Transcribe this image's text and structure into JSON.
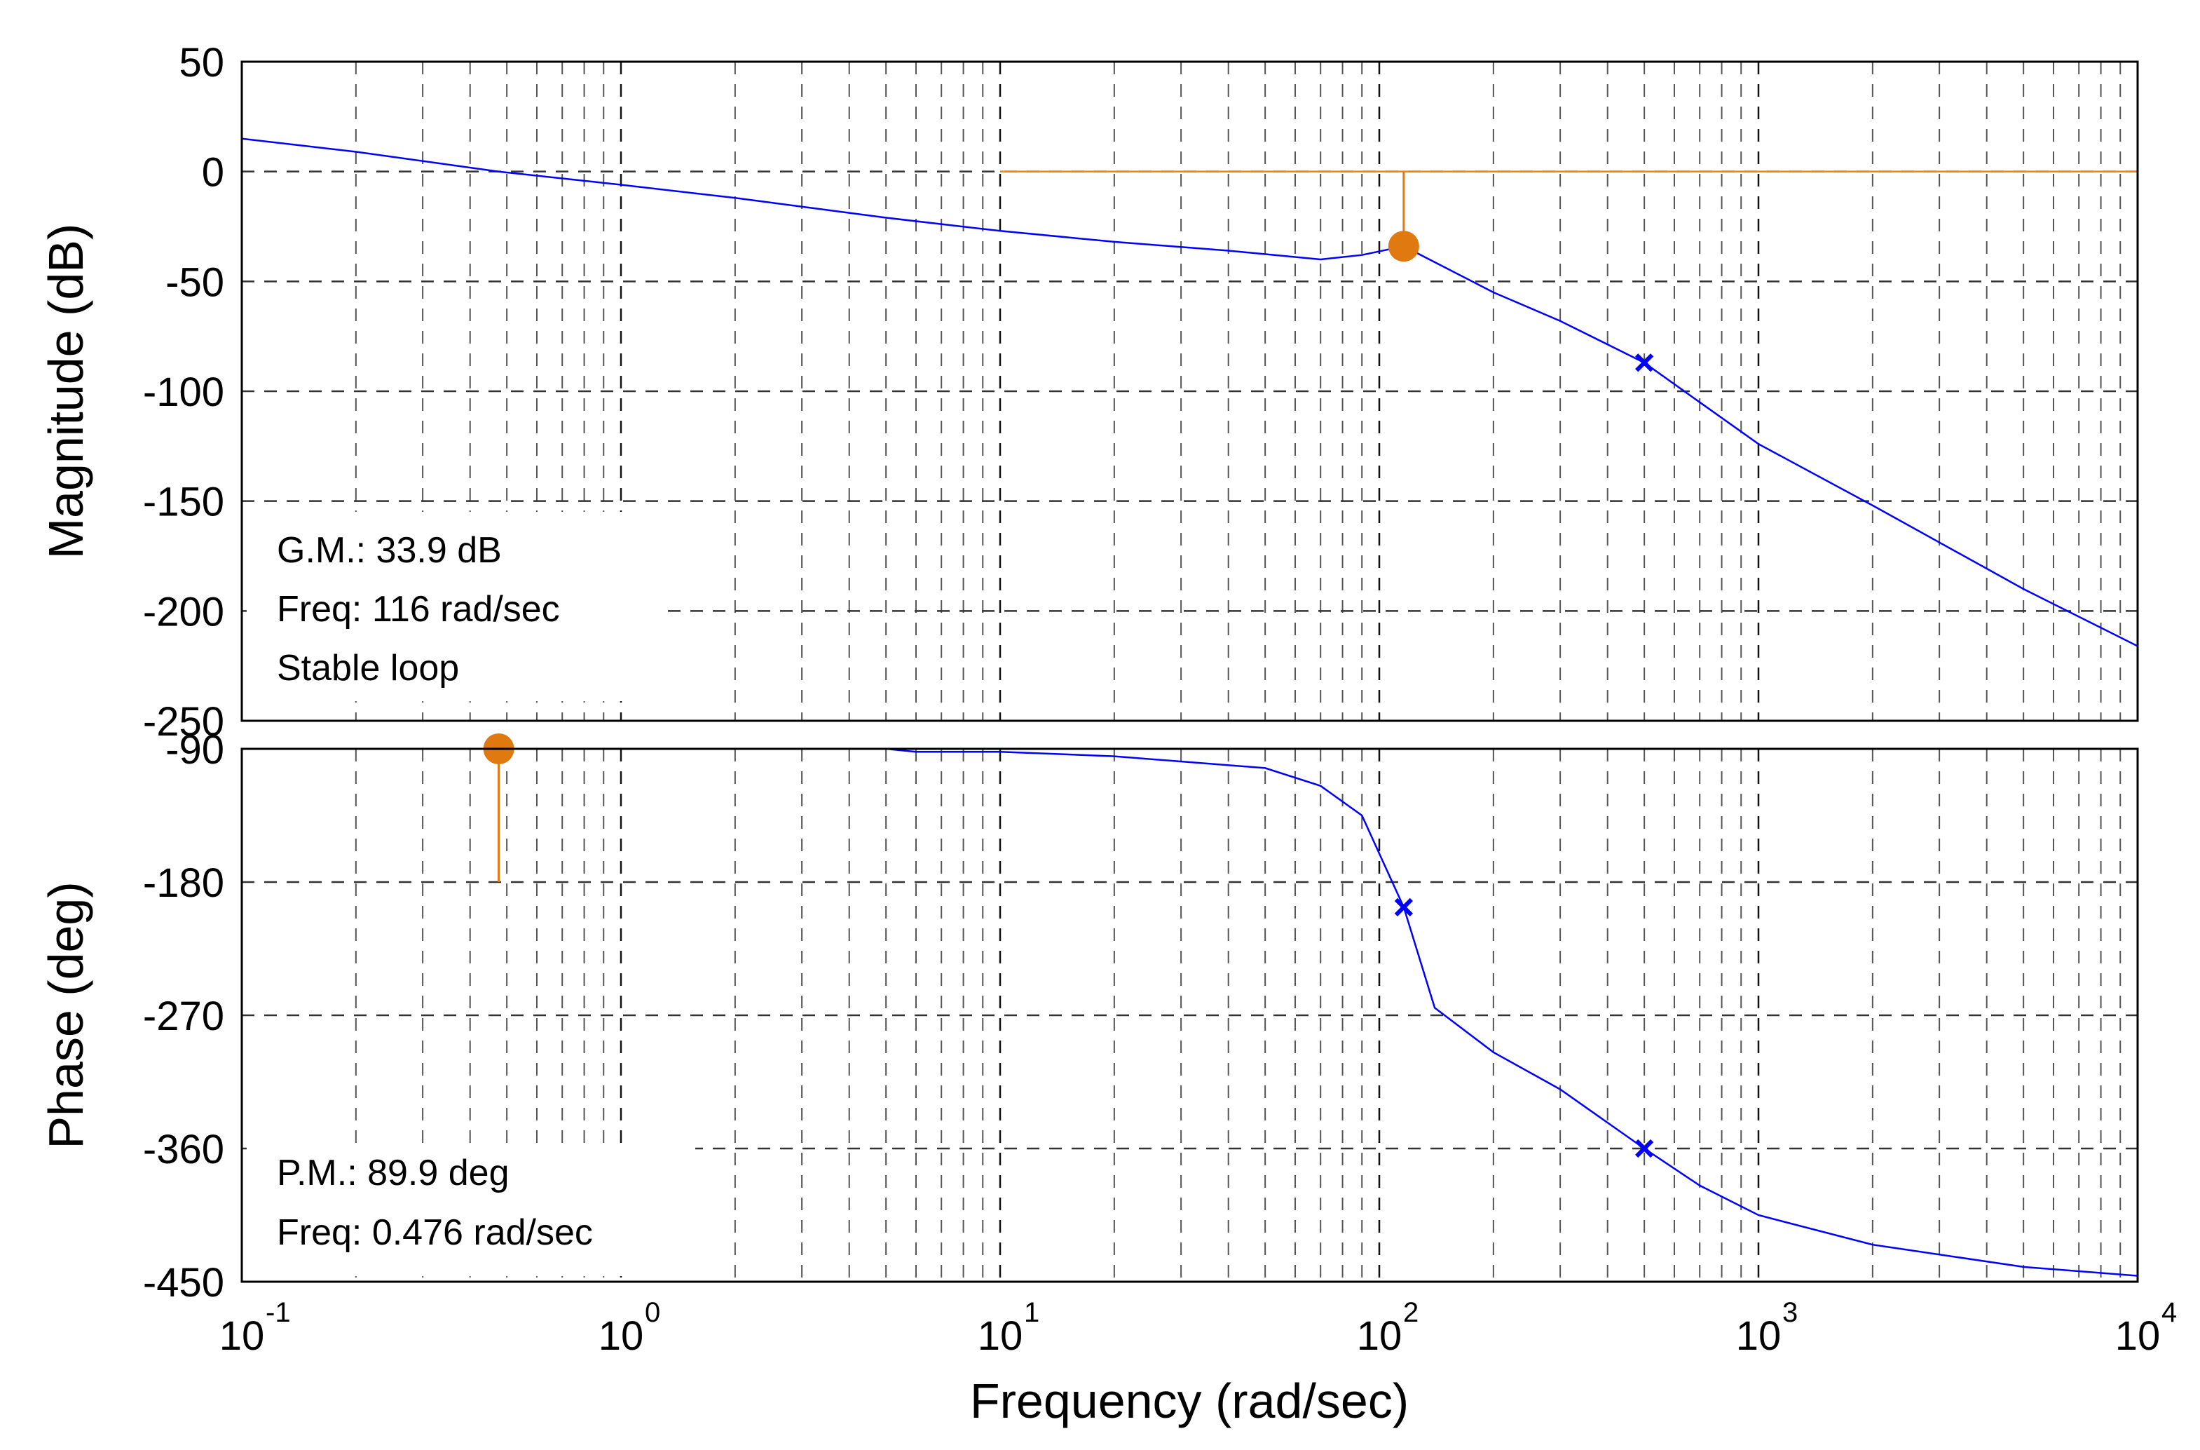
{
  "chart_data": [
    {
      "type": "line",
      "name": "magnitude",
      "ylabel": "Magnitude (dB)",
      "xscale": "log",
      "xlim": [
        0.1,
        10000
      ],
      "ylim": [
        -250,
        50
      ],
      "yticks": [
        50,
        0,
        -50,
        -100,
        -150,
        -200,
        -250
      ],
      "grid": true,
      "series": [
        {
          "name": "magnitude response",
          "color": "#0000ff",
          "points": [
            [
              0.1,
              15
            ],
            [
              0.2,
              9
            ],
            [
              0.476,
              0
            ],
            [
              1,
              -6
            ],
            [
              2,
              -12
            ],
            [
              3,
              -16
            ],
            [
              5,
              -21
            ],
            [
              10,
              -27
            ],
            [
              20,
              -32
            ],
            [
              40,
              -36
            ],
            [
              70,
              -40
            ],
            [
              90,
              -38
            ],
            [
              116,
              -34
            ],
            [
              200,
              -55
            ],
            [
              300,
              -68
            ],
            [
              500,
              -87
            ],
            [
              700,
              -105
            ],
            [
              1000,
              -124
            ],
            [
              2000,
              -152
            ],
            [
              5000,
              -190
            ],
            [
              10000,
              -216
            ]
          ]
        }
      ],
      "reference_line": {
        "y": 0,
        "color": "#ff8000"
      },
      "markers": [
        {
          "shape": "circle",
          "x": 116,
          "y": -34,
          "color": "#e07a10",
          "stem_to": 0
        },
        {
          "shape": "x",
          "x": 500,
          "y": -87,
          "color": "#0000ff"
        }
      ],
      "annotations": [
        "G.M.: 33.9 dB",
        "Freq: 116 rad/sec",
        "Stable loop"
      ]
    },
    {
      "type": "line",
      "name": "phase",
      "ylabel": "Phase (deg)",
      "xlabel": "Frequency (rad/sec)",
      "xscale": "log",
      "xlim": [
        0.1,
        10000
      ],
      "ylim": [
        -450,
        -90
      ],
      "yticks": [
        -90,
        -180,
        -270,
        -360,
        -450
      ],
      "xtick_labels": [
        {
          "base": "10",
          "exp": "-1"
        },
        {
          "base": "10",
          "exp": "0"
        },
        {
          "base": "10",
          "exp": "1"
        },
        {
          "base": "10",
          "exp": "2"
        },
        {
          "base": "10",
          "exp": "3"
        },
        {
          "base": "10",
          "exp": "4"
        }
      ],
      "grid": true,
      "series": [
        {
          "name": "phase response",
          "color": "#0000ff",
          "points": [
            [
              0.1,
              -90
            ],
            [
              1,
              -90
            ],
            [
              5,
              -90
            ],
            [
              6,
              -92
            ],
            [
              10,
              -92
            ],
            [
              20,
              -95
            ],
            [
              50,
              -103
            ],
            [
              70,
              -115
            ],
            [
              90,
              -135
            ],
            [
              116,
              -197
            ],
            [
              140,
              -265
            ],
            [
              200,
              -295
            ],
            [
              300,
              -320
            ],
            [
              500,
              -360
            ],
            [
              700,
              -385
            ],
            [
              1000,
              -405
            ],
            [
              2000,
              -425
            ],
            [
              5000,
              -440
            ],
            [
              10000,
              -446
            ]
          ]
        }
      ],
      "markers": [
        {
          "shape": "circle",
          "x": 0.476,
          "y": -90,
          "color": "#e07a10",
          "stem_to": -180
        },
        {
          "shape": "x",
          "x": 116,
          "y": -197,
          "color": "#0000ff"
        },
        {
          "shape": "x",
          "x": 500,
          "y": -360,
          "color": "#0000ff"
        }
      ],
      "annotations": [
        "P.M.: 89.9 deg",
        "Freq: 0.476 rad/sec"
      ]
    }
  ]
}
